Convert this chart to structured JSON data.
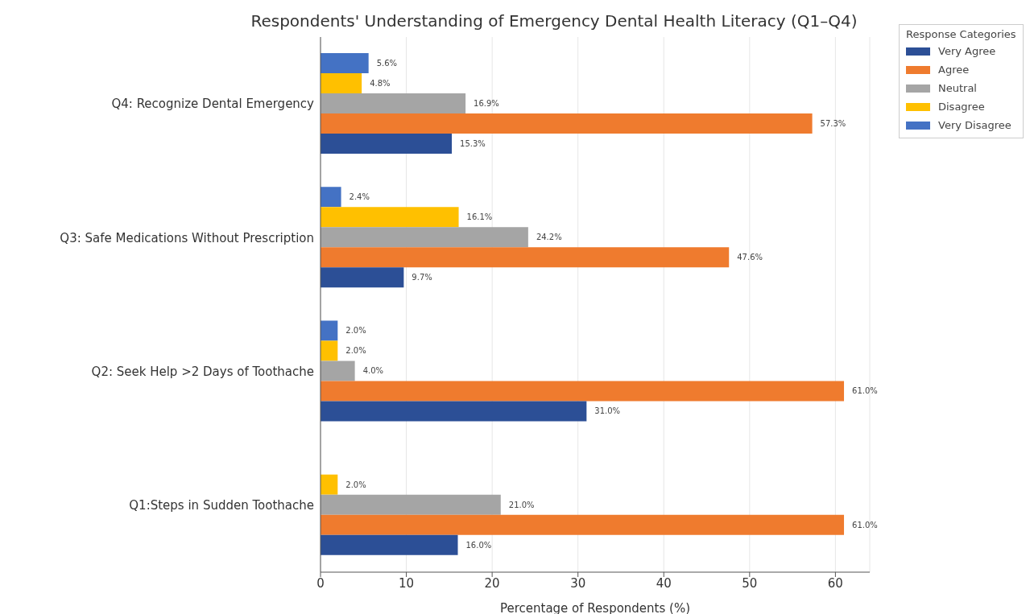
{
  "chart_data": {
    "type": "bar",
    "orientation": "horizontal",
    "title": "Respondents' Understanding of Emergency Dental Health Literacy (Q1–Q4)",
    "xlabel": "Percentage of Respondents (%)",
    "legend_title": "Response Categories",
    "categories": [
      "Q4: Recognize Dental Emergency",
      "Q3: Safe Medications Without Prescription",
      "Q2: Seek Help >2 Days of Toothache",
      "Q1:Steps in Sudden Toothache"
    ],
    "series": [
      {
        "name": "Very Agree",
        "color": "#2c4f96",
        "values": [
          15.3,
          9.7,
          31.0,
          16.0
        ],
        "value_labels": [
          "15.3%",
          "9.7%",
          "31.0%",
          "16.0%"
        ]
      },
      {
        "name": "Agree",
        "color": "#ef7b2e",
        "values": [
          57.3,
          47.6,
          61.0,
          61.0
        ],
        "value_labels": [
          "57.3%",
          "47.6%",
          "61.0%",
          "61.0%"
        ]
      },
      {
        "name": "Neutral",
        "color": "#a5a5a5",
        "values": [
          16.9,
          24.2,
          4.0,
          21.0
        ],
        "value_labels": [
          "16.9%",
          "24.2%",
          "4.0%",
          "21.0%"
        ]
      },
      {
        "name": "Disagree",
        "color": "#ffc000",
        "values": [
          4.8,
          16.1,
          2.0,
          2.0
        ],
        "value_labels": [
          "4.8%",
          "16.1%",
          "2.0%",
          "2.0%"
        ]
      },
      {
        "name": "Very Disagree",
        "color": "#4472c4",
        "values": [
          5.6,
          2.4,
          2.0,
          null
        ],
        "value_labels": [
          "5.6%",
          "2.4%",
          "2.0%",
          null
        ]
      }
    ],
    "xlim": [
      0,
      64
    ],
    "xticks": [
      0,
      10,
      20,
      30,
      40,
      50,
      60
    ],
    "grid": "x",
    "legend": "top right"
  }
}
